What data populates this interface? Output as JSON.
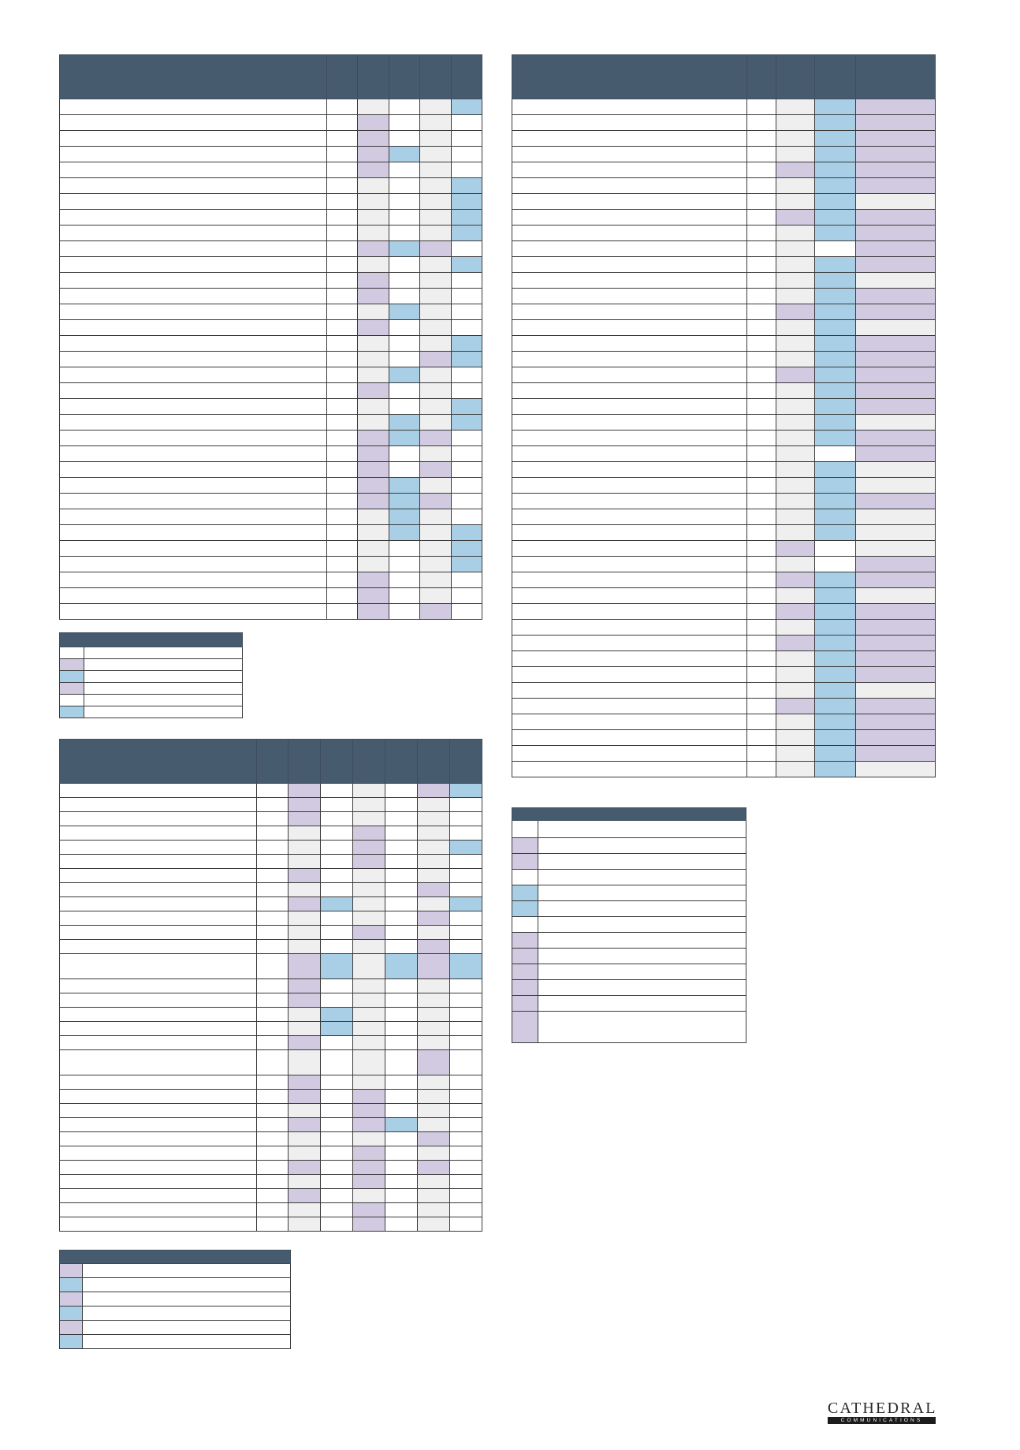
{
  "palette": {
    "header": "#475b6e",
    "lavender": "#d1cae0",
    "blue": "#a8cfe6",
    "grey": "#efefef",
    "white": "#ffffff"
  },
  "tables": [
    {
      "id": "top-left",
      "rows": [
        "wwgwgb",
        "wwpwgw",
        "wwpwgw",
        "wwpbgw",
        "wwpwgw",
        "wwgwgb",
        "wwgwgb",
        "wwgwgb",
        "wwgwgb",
        "wwpbpw",
        "wwgwgb",
        "wwpwgw",
        "wwpwgw",
        "wwgbgw",
        "wwpwgw",
        "wwgwgb",
        "wwgwpb",
        "wwgbgw",
        "wwpwgw",
        "wwgwgb",
        "wwgbgb",
        "wwpbpw",
        "wwpwgw",
        "wwpwpw",
        "wwpbgw",
        "wwpbpw",
        "wwgbgw",
        "wwgbgb",
        "wwgwgb",
        "wwgwgb",
        "wwpwgw",
        "wwpwgw",
        "wwpwpw"
      ]
    },
    {
      "id": "top-right",
      "rows": [
        "wwgbp",
        "wwgbp",
        "wwgbp",
        "wwgbp",
        "wwpbp",
        "wwgbp",
        "wwgbg",
        "wwpbp",
        "wwgbp",
        "wwgwp",
        "wwgbp",
        "wwgbg",
        "wwgbp",
        "wwpbp",
        "wwgbg",
        "wwgbp",
        "wwgbp",
        "wwpbp",
        "wwgbp",
        "wwgbp",
        "wwgbg",
        "wwgbp",
        "wwgwp",
        "wwgbg",
        "wwgbg",
        "wwgbp",
        "wwgbg",
        "wwgbg",
        "wwpwg",
        "wwgwp",
        "wwpbp",
        "wwgbg",
        "wwpbp",
        "wwgbp",
        "wwpbp",
        "wwgbp",
        "wwgbp",
        "wwgbg",
        "wwpbp",
        "wwgbp",
        "wwgbp",
        "wwgbp",
        "wwgbg"
      ]
    },
    {
      "id": "bottom-left",
      "rows": [
        "wwpwgwpb",
        "wwpwgwgw",
        "wwpwgwgw",
        "wwgwpwgw",
        "wwgwpwgb",
        "wwgwpwgw",
        "wwpwgwgw",
        "wwgwgwpw",
        "wwpbgwgb",
        "wwgwgwpw",
        "wwgwpwgw",
        "wwgwgwpw",
        "wwpbgbpb",
        "wwpwgwgw",
        "wwpwgwgw",
        "wwgbgwgw",
        "wwgbgwgw",
        "wwpwgwgw",
        "wwgwgwpw",
        "wwpwgwgw",
        "wwpwpwgw",
        "wwgwpwgw",
        "wwpwpbgw",
        "wwgwgwpw",
        "wwgwpwgw",
        "wwpwpwpw",
        "wwgwpwgw",
        "wwpwgwgw",
        "wwgwpwgw",
        "wwgwpwgw"
      ]
    }
  ],
  "legends": [
    {
      "id": "legend-1",
      "swatches": [
        "w",
        "p",
        "b",
        "p",
        "w",
        "b"
      ]
    },
    {
      "id": "legend-2",
      "swatches": [
        "w",
        "p",
        "p",
        "w",
        "b",
        "b",
        "w",
        "p",
        "p",
        "p",
        "p",
        "p",
        "p"
      ]
    },
    {
      "id": "legend-3",
      "swatches": [
        "p",
        "b",
        "p",
        "b",
        "p",
        "b"
      ]
    }
  ],
  "logo": {
    "name": "CATHEDRAL",
    "tagline": "COMMUNICATIONS"
  }
}
